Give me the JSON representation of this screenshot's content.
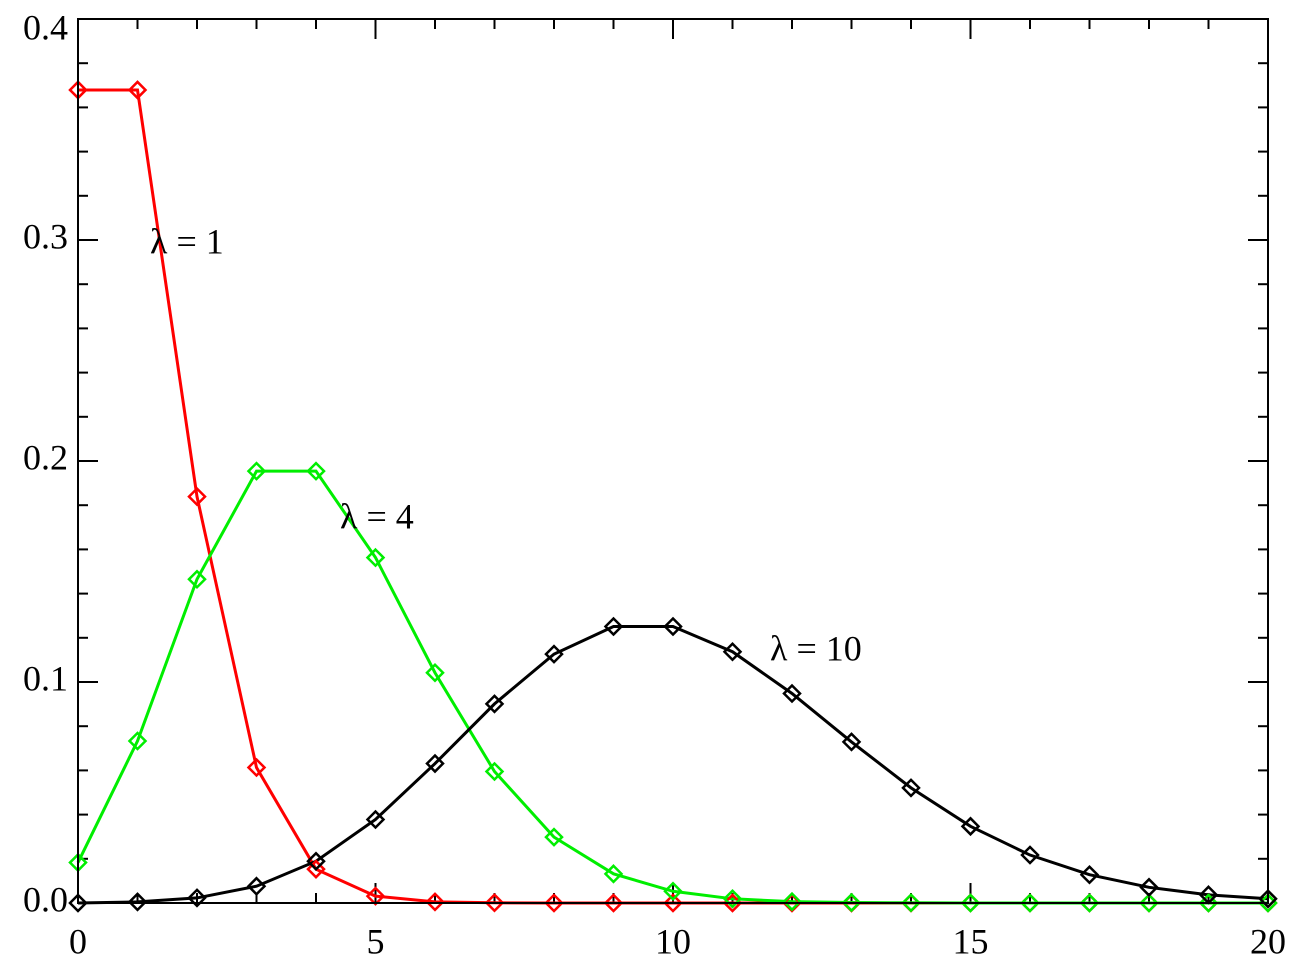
{
  "chart_data": {
    "type": "line",
    "x": [
      0,
      1,
      2,
      3,
      4,
      5,
      6,
      7,
      8,
      9,
      10,
      11,
      12,
      13,
      14,
      15,
      16,
      17,
      18,
      19,
      20
    ],
    "series": [
      {
        "name": "λ = 1",
        "color": "#ff0000",
        "values": [
          0.3679,
          0.3679,
          0.1839,
          0.0613,
          0.0153,
          0.0031,
          0.0005,
          0.0001,
          0,
          0,
          0,
          0,
          0,
          0,
          0,
          0,
          0,
          0,
          0,
          0,
          0
        ]
      },
      {
        "name": "λ = 4",
        "color": "#00ee00",
        "values": [
          0.0183,
          0.0733,
          0.1465,
          0.1954,
          0.1954,
          0.1563,
          0.1042,
          0.0595,
          0.0298,
          0.0132,
          0.0053,
          0.0019,
          0.0006,
          0.0002,
          0.0001,
          0,
          0,
          0,
          0,
          0,
          0
        ]
      },
      {
        "name": "λ = 10",
        "color": "#000000",
        "values": [
          0.0,
          0.0005,
          0.0023,
          0.0076,
          0.0189,
          0.0378,
          0.0631,
          0.0901,
          0.1126,
          0.1251,
          0.1251,
          0.1137,
          0.0948,
          0.0729,
          0.0521,
          0.0347,
          0.0217,
          0.0128,
          0.0071,
          0.0037,
          0.0019
        ]
      }
    ],
    "xlim": [
      0,
      20
    ],
    "ylim": [
      0,
      0.4
    ],
    "xticks": [
      0,
      5,
      10,
      15,
      20
    ],
    "yticks": [
      {
        "value": 0,
        "label": "0.0"
      },
      0.1,
      0.2,
      0.3,
      0.4
    ],
    "xminorticks": [
      0,
      1,
      2,
      3,
      4,
      5,
      6,
      7,
      8,
      9,
      10,
      11,
      12,
      13,
      14,
      15,
      16,
      17,
      18,
      19,
      20
    ],
    "yminorticks": [
      0,
      0.02,
      0.04,
      0.06,
      0.08,
      0.1,
      0.12,
      0.14,
      0.16,
      0.18,
      0.2,
      0.22,
      0.24,
      0.26,
      0.28,
      0.3,
      0.32,
      0.34,
      0.36,
      0.38,
      0.4
    ]
  }
}
